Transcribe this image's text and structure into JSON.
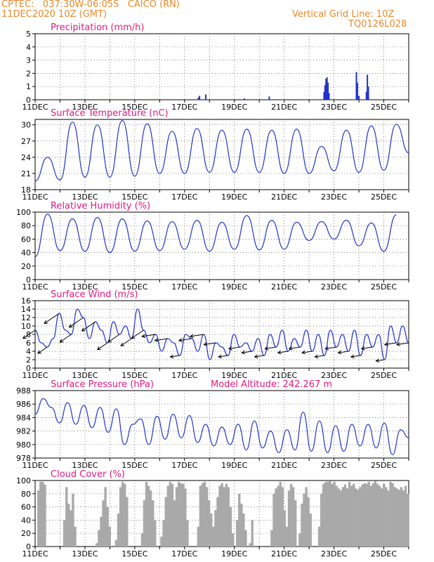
{
  "header": {
    "line1": "CPTEC:   037:30W-06:05S   CAICO (RN)",
    "line2": "11DEC2020 10Z (GMT)",
    "right1": "Vertical Grid Line: 10Z",
    "right2": "TQ0126L028"
  },
  "colors": {
    "header": "#e8892c",
    "title": "#e6197f",
    "line": "#2233cc",
    "cloud": "#a9a9a9",
    "arrow": "#000000"
  },
  "x_tick_labels": [
    "11DEC",
    "13DEC",
    "15DEC",
    "17DEC",
    "19DEC",
    "21DEC",
    "23DEC",
    "25DEC"
  ],
  "chart_data": [
    {
      "type": "bar",
      "title": "Precipitation (mm/h)",
      "ylim": [
        0,
        5
      ],
      "yticks": [
        0,
        1,
        2,
        3,
        4,
        5
      ],
      "xlim": [
        0,
        15
      ],
      "events": [
        {
          "t": 6.55,
          "v": 0.15
        },
        {
          "t": 6.6,
          "v": 0.3
        },
        {
          "t": 6.85,
          "v": 0.4
        },
        {
          "t": 8.4,
          "v": 0.1
        },
        {
          "t": 9.4,
          "v": 0.25
        },
        {
          "t": 11.6,
          "v": 0.6
        },
        {
          "t": 11.64,
          "v": 1.1
        },
        {
          "t": 11.68,
          "v": 1.6
        },
        {
          "t": 11.72,
          "v": 1.7
        },
        {
          "t": 11.76,
          "v": 1.3
        },
        {
          "t": 11.8,
          "v": 0.5
        },
        {
          "t": 12.9,
          "v": 2.1
        },
        {
          "t": 12.94,
          "v": 1.3
        },
        {
          "t": 13.0,
          "v": 0.3
        },
        {
          "t": 13.3,
          "v": 0.6
        },
        {
          "t": 13.34,
          "v": 1.9
        },
        {
          "t": 13.38,
          "v": 1.0
        }
      ]
    },
    {
      "type": "line",
      "title": "Surface Temperature (nC)",
      "ylim": [
        18,
        31
      ],
      "yticks": [
        18,
        21,
        24,
        27,
        30
      ],
      "xlim": [
        0,
        15
      ],
      "daily_max": [
        24.0,
        30.5,
        30.0,
        30.8,
        30.2,
        28.8,
        29.3,
        29.0,
        29.2,
        29.0,
        29.2,
        26.0,
        29.0,
        29.8,
        30.1
      ],
      "daily_min": [
        19.6,
        19.8,
        20.3,
        20.3,
        20.5,
        21.0,
        21.0,
        21.2,
        21.2,
        21.2,
        21.0,
        21.0,
        21.5,
        21.2,
        21.6,
        24.8
      ]
    },
    {
      "type": "line",
      "title": "Relative Humidity (%)",
      "ylim": [
        0,
        100
      ],
      "yticks": [
        0,
        20,
        40,
        60,
        80,
        100
      ],
      "xlim": [
        0,
        15
      ],
      "daily_max": [
        97,
        90,
        92,
        90,
        87,
        86,
        88,
        85,
        95,
        88,
        85,
        86,
        88,
        84,
        96,
        62
      ],
      "daily_min": [
        34,
        43,
        42,
        40,
        42,
        43,
        45,
        42,
        45,
        44,
        45,
        58,
        60,
        50,
        42
      ]
    },
    {
      "type": "line",
      "title": "Surface Wind (m/s)",
      "ylim": [
        0,
        16
      ],
      "yticks": [
        0,
        2,
        4,
        6,
        8,
        10,
        12,
        14,
        16
      ],
      "xlim": [
        0,
        15
      ],
      "values": [
        9,
        6,
        5,
        7,
        13,
        9,
        8,
        14,
        12,
        7,
        11,
        9,
        6,
        11,
        8,
        10,
        7,
        14,
        9,
        6,
        8,
        4,
        7,
        6,
        3,
        8,
        7,
        4,
        8,
        2,
        6,
        5,
        3,
        8,
        5,
        6,
        4,
        7,
        3,
        8,
        5,
        9,
        4,
        7,
        5,
        9,
        4,
        8,
        3,
        9,
        5,
        8,
        4,
        9,
        3,
        8,
        5,
        8,
        2,
        10,
        6,
        10,
        6
      ]
    },
    {
      "type": "line",
      "title": "Surface Pressure (hPa)",
      "annotation": "Model Altitude: 242.267  m",
      "ylim": [
        978,
        988
      ],
      "yticks": [
        978,
        980,
        982,
        984,
        986,
        988
      ],
      "xlim": [
        0,
        15
      ],
      "values": [
        984.5,
        986.8,
        985.5,
        983.2,
        986.2,
        983.0,
        985.8,
        982.5,
        985.5,
        981.8,
        985.3,
        980.0,
        983.0,
        983.8,
        980.0,
        984.2,
        980.8,
        984.5,
        981.0,
        984.3,
        980.3,
        983.0,
        979.8,
        982.6,
        980.0,
        983.0,
        979.2,
        983.5,
        979.5,
        982.0,
        978.8,
        982.2,
        979.2,
        984.8,
        979.0,
        983.5,
        978.8,
        982.8,
        979.0,
        983.0,
        979.8,
        983.0,
        979.5,
        983.2,
        978.5,
        982.2,
        981.0
      ]
    },
    {
      "type": "bar",
      "title": "Cloud Cover (%)",
      "ylim": [
        0,
        100
      ],
      "yticks": [
        0,
        20,
        40,
        60,
        80,
        100
      ],
      "xlim": [
        0,
        15
      ],
      "values": [
        0,
        85,
        98,
        98,
        94,
        0,
        0,
        0,
        0,
        0,
        0,
        0,
        0,
        40,
        90,
        65,
        55,
        80,
        30,
        0,
        0,
        0,
        0,
        0,
        0,
        0,
        0,
        0,
        5,
        25,
        45,
        70,
        90,
        60,
        30,
        0,
        0,
        10,
        50,
        90,
        98,
        95,
        75,
        0,
        0,
        0,
        0,
        0,
        0,
        20,
        70,
        98,
        92,
        85,
        70,
        40,
        0,
        0,
        15,
        40,
        75,
        92,
        98,
        95,
        70,
        90,
        98,
        96,
        95,
        88,
        40,
        0,
        0,
        0,
        0,
        30,
        92,
        96,
        98,
        90,
        70,
        50,
        30,
        55,
        75,
        92,
        96,
        90,
        95,
        90,
        60,
        20,
        0,
        40,
        80,
        65,
        50,
        25,
        0,
        5,
        40,
        0,
        0,
        0,
        0,
        0,
        0,
        0,
        0,
        25,
        80,
        88,
        92,
        98,
        90,
        55,
        30,
        85,
        95,
        90,
        70,
        0,
        20,
        65,
        80,
        90,
        75,
        50,
        0,
        0,
        0,
        30,
        80,
        95,
        98,
        98,
        99,
        95,
        98,
        92,
        88,
        85,
        90,
        94,
        88,
        98,
        92,
        95,
        88,
        86,
        90,
        94,
        96,
        95,
        98,
        92,
        96,
        99,
        95,
        92,
        88,
        95,
        90,
        85,
        98,
        96,
        90,
        88,
        86,
        90,
        85,
        92,
        80
      ]
    }
  ]
}
